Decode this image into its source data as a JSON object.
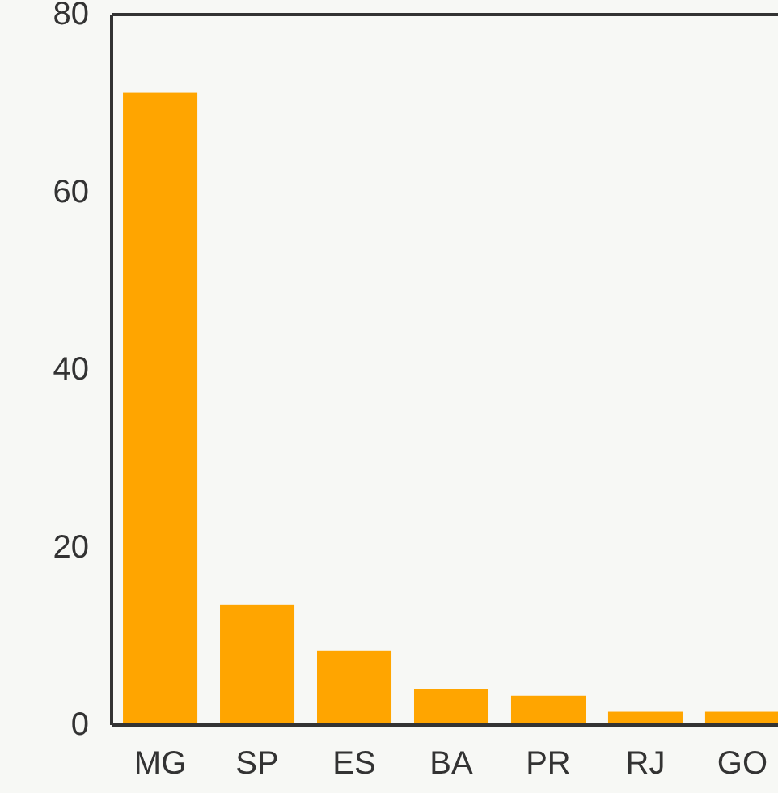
{
  "chart_data": {
    "type": "bar",
    "categories": [
      "MG",
      "SP",
      "ES",
      "BA",
      "PR",
      "RJ",
      "GO"
    ],
    "values": [
      71.2,
      13.5,
      8.4,
      4.1,
      3.3,
      1.5,
      1.5
    ],
    "color": "#ffa500",
    "ylim": [
      0,
      80
    ],
    "yticks": [
      0,
      20,
      40,
      60,
      80
    ],
    "grid": false
  }
}
